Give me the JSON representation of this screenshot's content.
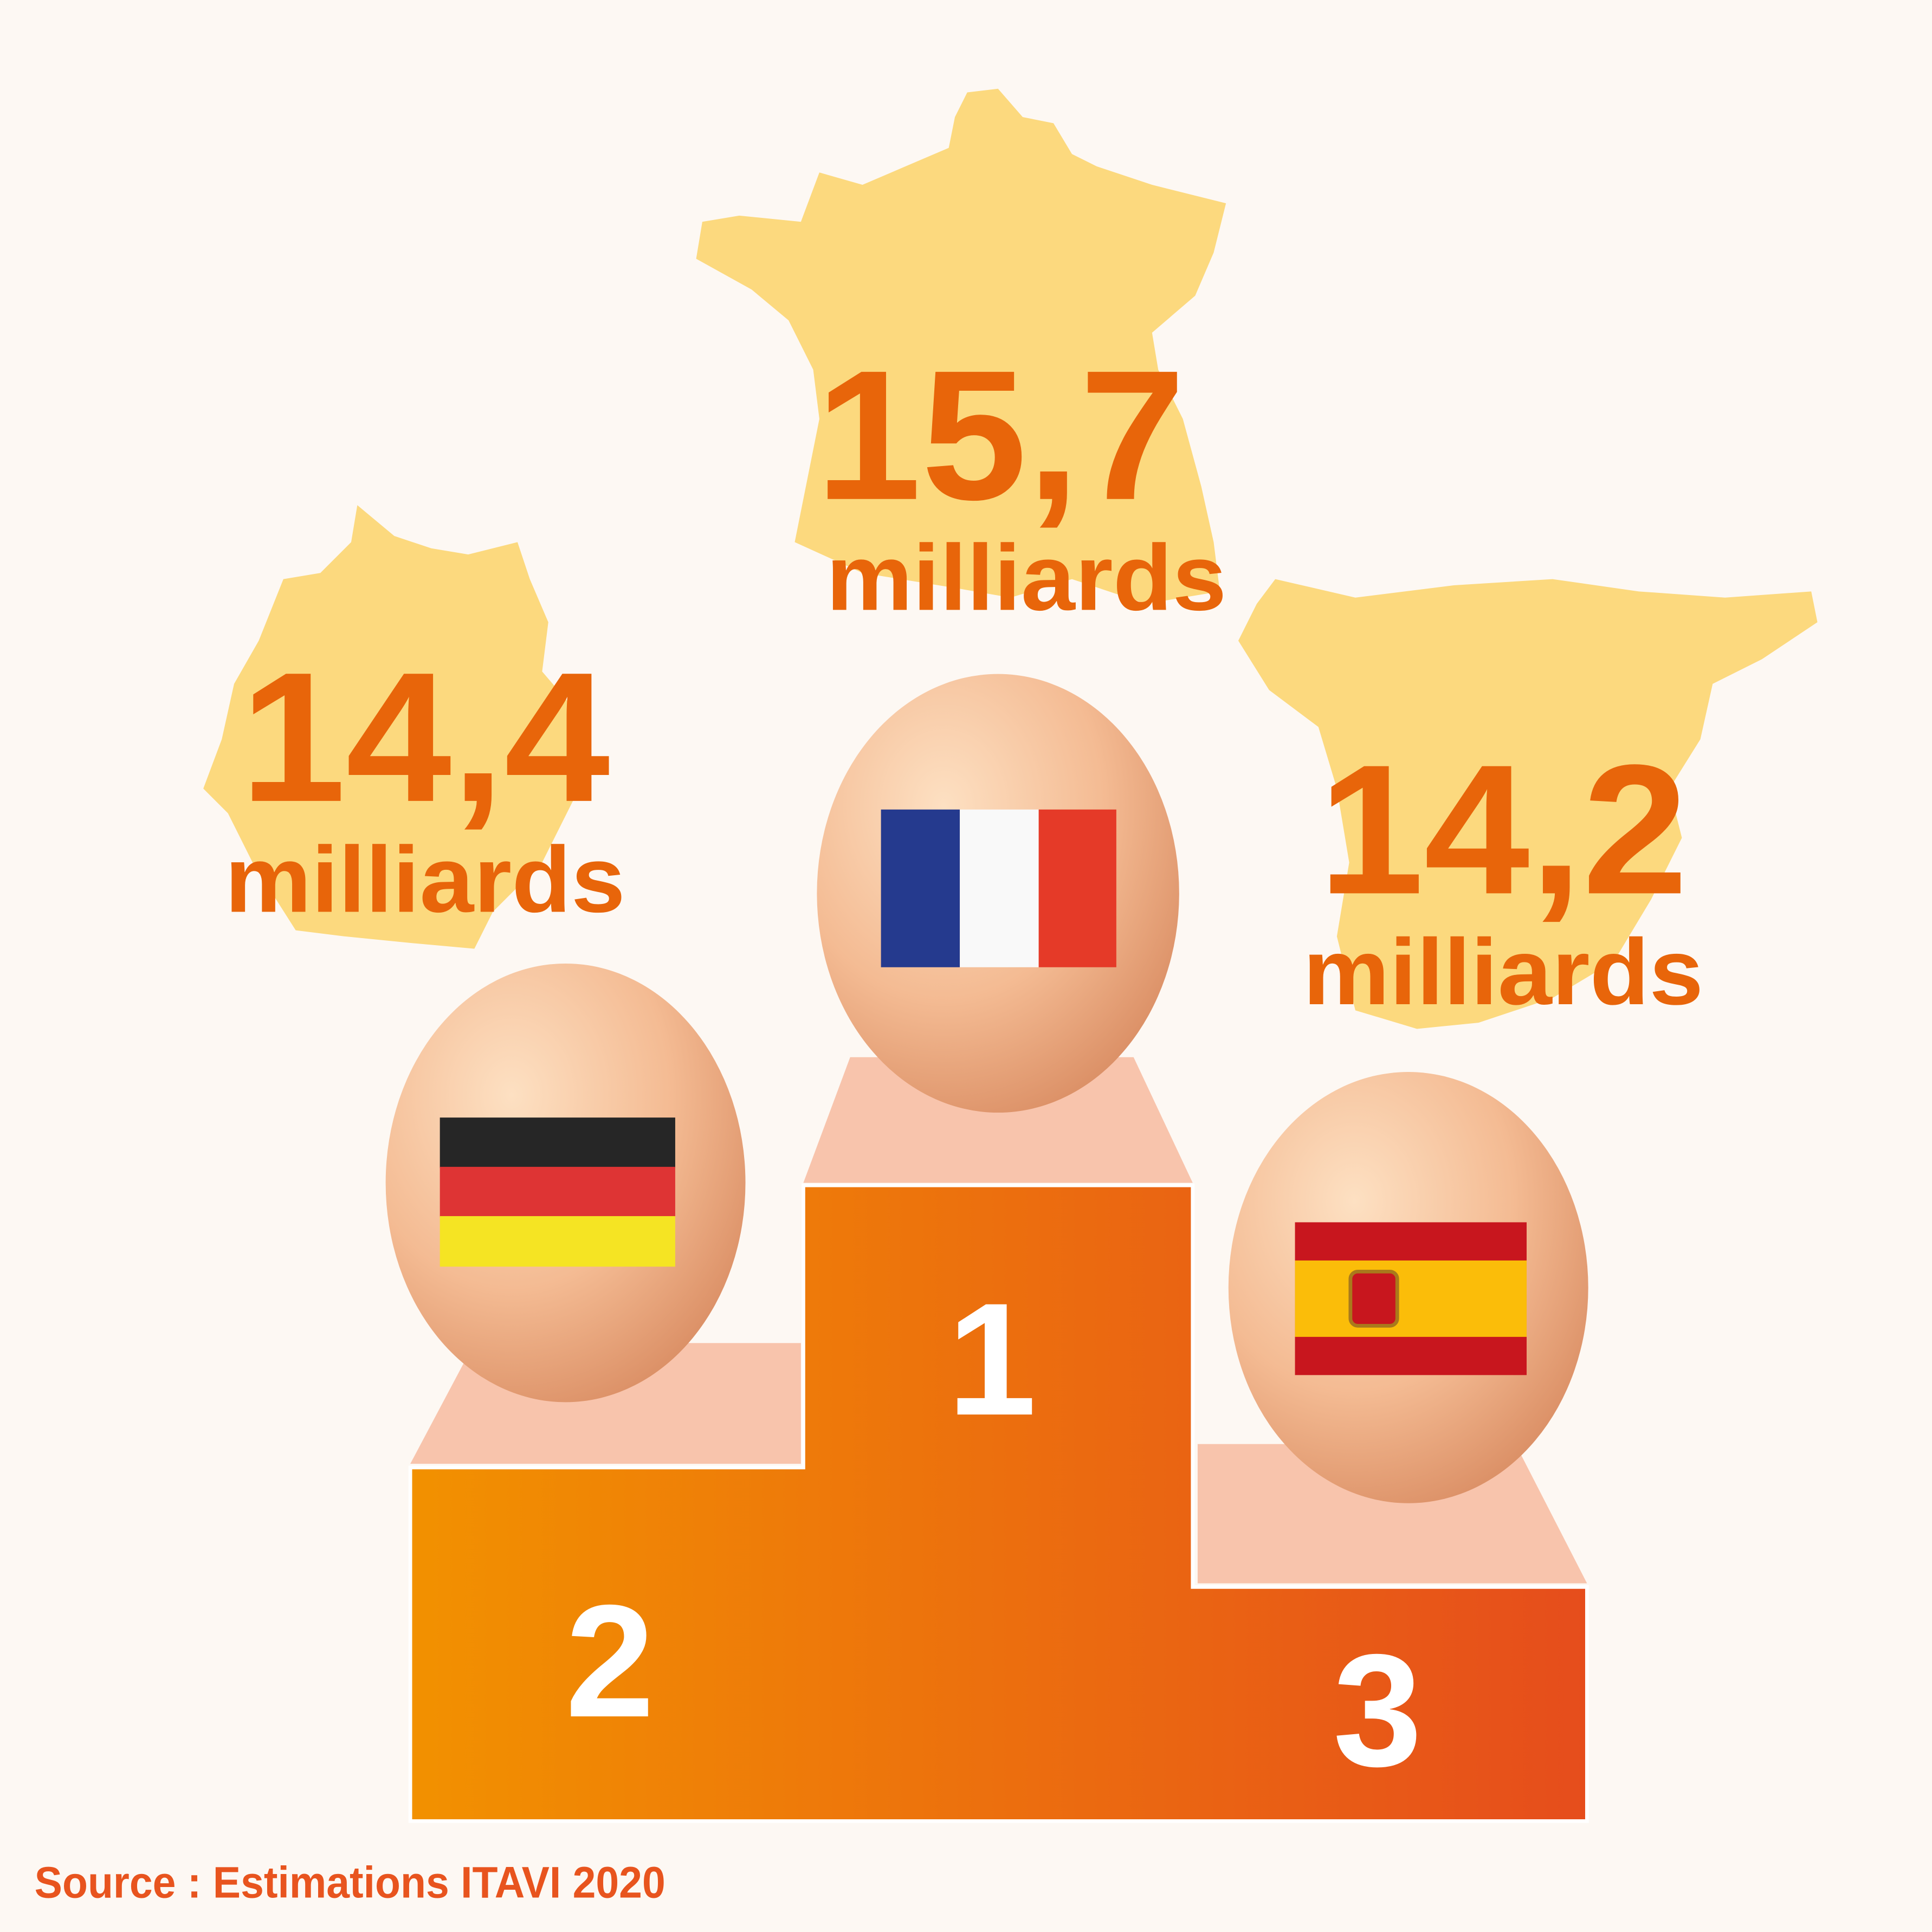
{
  "podium": [
    {
      "rank": "1",
      "value": "15,7",
      "unit": "milliards"
    },
    {
      "rank": "2",
      "value": "14,4",
      "unit": "milliards"
    },
    {
      "rank": "3",
      "value": "14,2",
      "unit": "milliards"
    }
  ],
  "source": "Source : Estimations ITAVI 2020"
}
